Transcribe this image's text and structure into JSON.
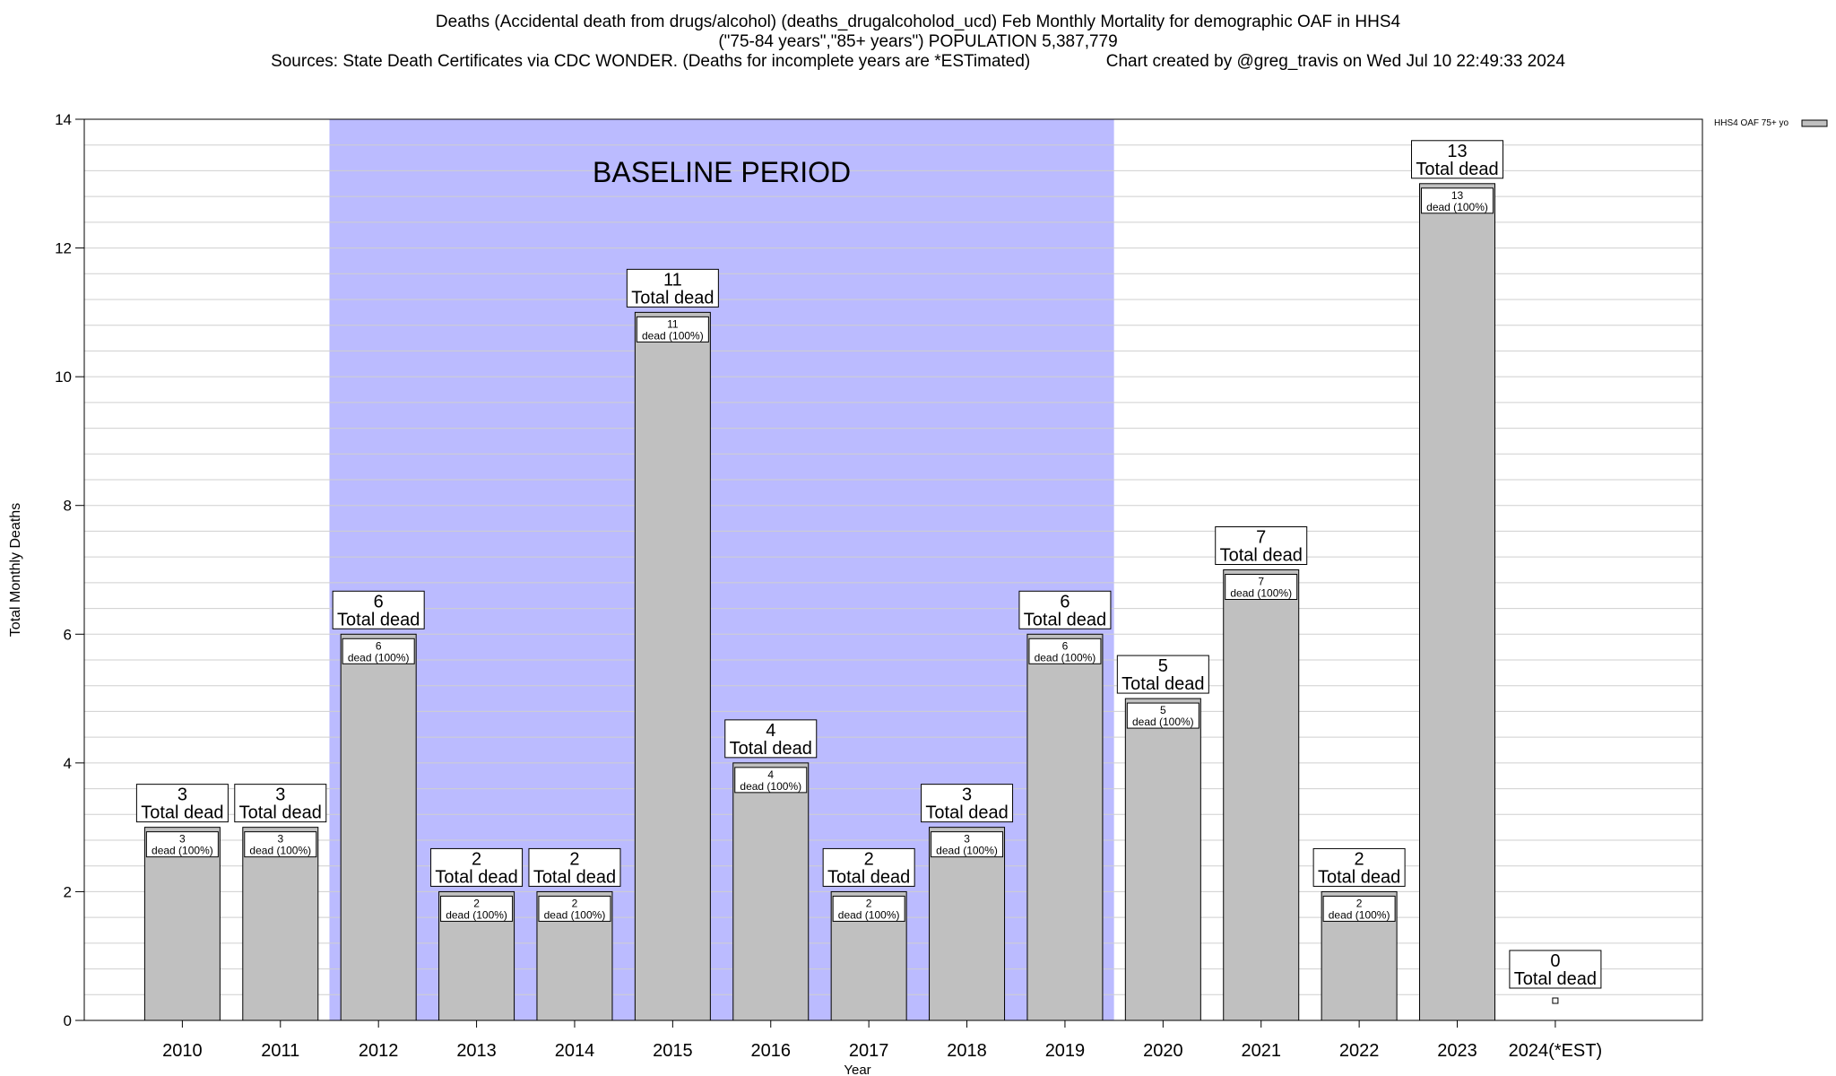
{
  "header": {
    "title_line1": "Deaths (Accidental death from drugs/alcohol) (deaths_drugalcoholod_ucd) Feb Monthly Mortality for demographic OAF in HHS4",
    "title_line2": "(\"75-84 years\",\"85+ years\") POPULATION 5,387,779",
    "sources": "Sources: State Death Certificates via CDC WONDER. (Deaths for incomplete years are *ESTimated)",
    "credit": "Chart created by @greg_travis on Wed Jul 10 22:49:33 2024"
  },
  "chart_data": {
    "type": "bar",
    "xlabel": "Year",
    "ylabel": "Total Monthly Deaths",
    "ylim": [
      0,
      14
    ],
    "yticks": [
      0,
      2,
      4,
      6,
      8,
      10,
      12,
      14
    ],
    "grid": true,
    "legend": "top-right",
    "categories": [
      "2010",
      "2011",
      "2012",
      "2013",
      "2014",
      "2015",
      "2016",
      "2017",
      "2018",
      "2019",
      "2020",
      "2021",
      "2022",
      "2023",
      "2024(*EST)"
    ],
    "series": [
      {
        "name": "HHS4 OAF 75+ yo",
        "values": [
          3,
          3,
          6,
          2,
          2,
          11,
          4,
          2,
          3,
          6,
          5,
          7,
          2,
          13,
          0
        ],
        "color": "#c0c0c0"
      }
    ],
    "total_label_suffix": "Total dead",
    "segment_label_suffix": "dead (100%)",
    "baseline_period": {
      "label": "BASELINE PERIOD",
      "from": "2012",
      "to": "2019",
      "color": "#bbbbff"
    }
  }
}
